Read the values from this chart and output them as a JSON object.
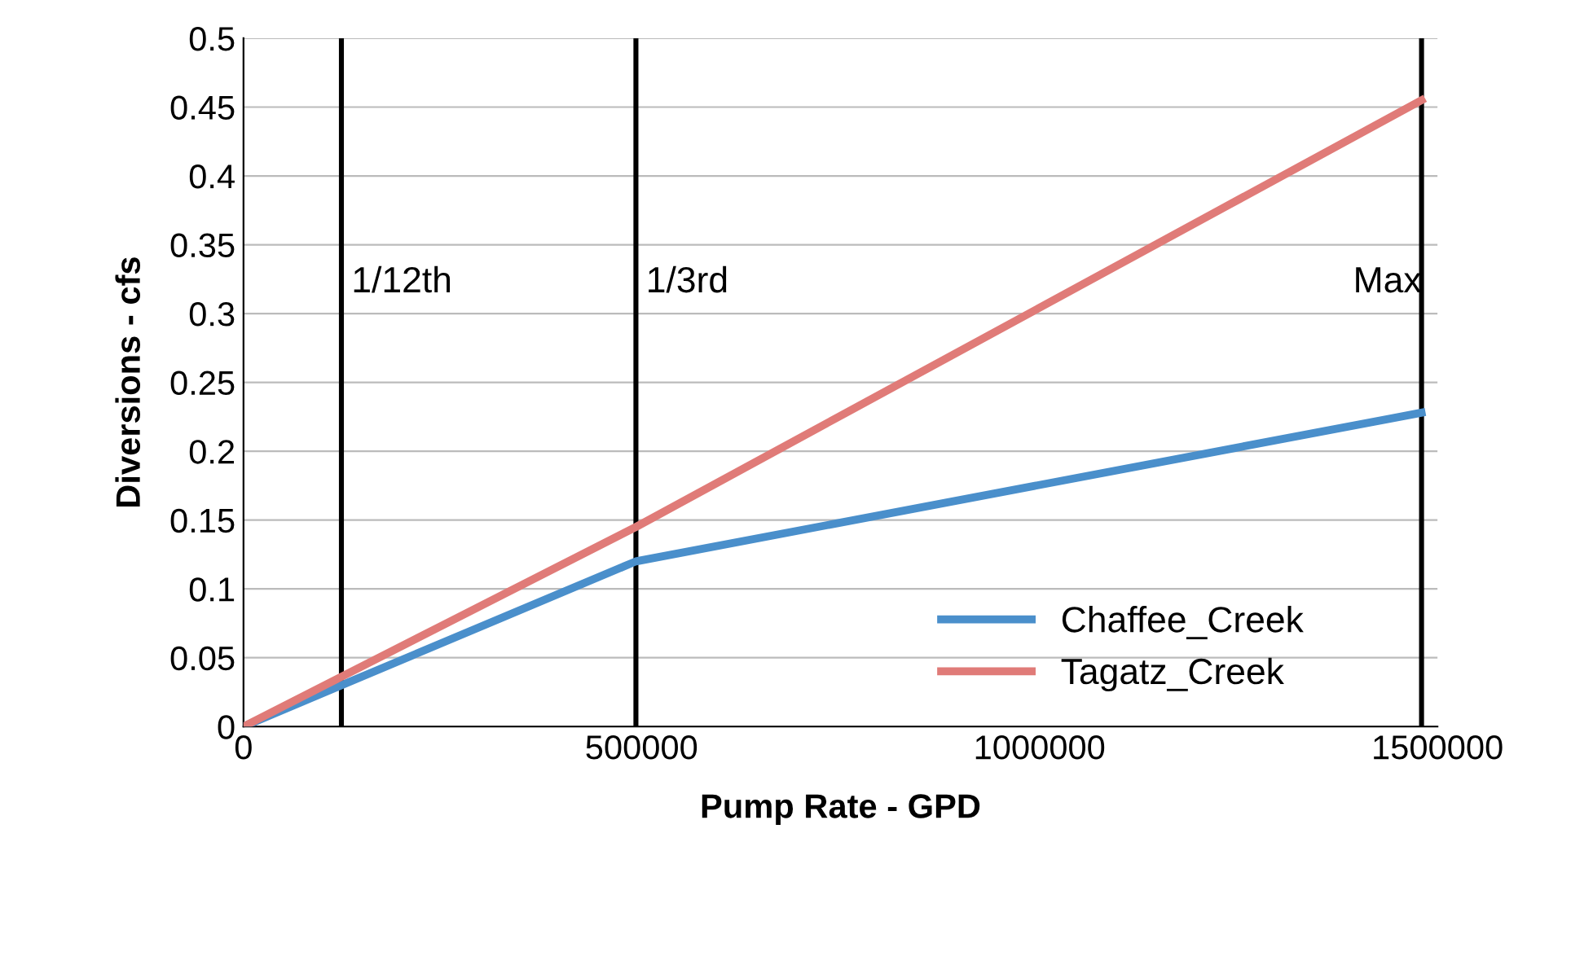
{
  "chart_data": {
    "type": "line",
    "xlabel": "Pump Rate - GPD",
    "ylabel": "Diversions - cfs",
    "xlim": [
      0,
      1500000
    ],
    "xticks": [
      0,
      500000,
      1000000,
      1500000
    ],
    "ylim": [
      0,
      0.5
    ],
    "yticks": [
      0,
      0.05,
      0.1,
      0.15,
      0.2,
      0.25,
      0.3,
      0.35,
      0.4,
      0.45,
      0.5
    ],
    "grid": "y",
    "legend": "bottom right",
    "marker": "none",
    "line_style": "solid",
    "series": [
      {
        "name": "Chaffee_Creek",
        "color": "#4a8fcb",
        "x": [
          0,
          123000,
          493000,
          1480000
        ],
        "values": [
          0,
          0.03,
          0.12,
          0.228
        ]
      },
      {
        "name": "Tagatz_Creek",
        "color": "#e07b78",
        "x": [
          0,
          493000,
          1480000
        ],
        "values": [
          0,
          0.145,
          0.455
        ]
      }
    ],
    "ref_lines": [
      {
        "axis": "x",
        "value": 123000,
        "label": "1/12th",
        "color": "#000000"
      },
      {
        "axis": "x",
        "value": 493000,
        "label": "1/3rd",
        "color": "#000000"
      },
      {
        "axis": "x",
        "value": 1480000,
        "label": "Max",
        "color": "#000000"
      }
    ]
  }
}
